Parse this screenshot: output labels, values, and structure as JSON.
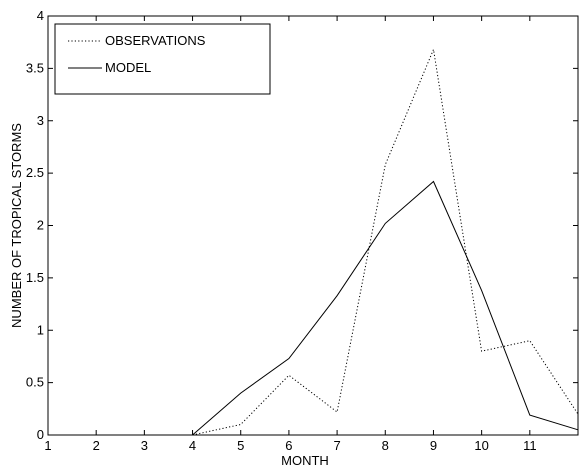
{
  "chart_data": {
    "type": "line",
    "title": "",
    "xlabel": "MONTH",
    "ylabel": "NUMBER OF TROPICAL STORMS",
    "xlim": [
      1,
      12
    ],
    "ylim": [
      0,
      4
    ],
    "xticks": [
      "1",
      "2",
      "3",
      "4",
      "5",
      "6",
      "7",
      "8",
      "9",
      "10",
      "11"
    ],
    "xtick_values": [
      1,
      2,
      3,
      4,
      5,
      6,
      7,
      8,
      9,
      10,
      11
    ],
    "yticks": [
      "0",
      "0.5",
      "1",
      "1.5",
      "2",
      "2.5",
      "3",
      "3.5",
      "4"
    ],
    "ytick_values": [
      0,
      0.5,
      1,
      1.5,
      2,
      2.5,
      3,
      3.5,
      4
    ],
    "grid": false,
    "legend_position": "top-left",
    "series": [
      {
        "name": "OBSERVATIONS",
        "style": "dotted",
        "color": "#000000",
        "x": [
          4,
          5,
          6,
          7,
          8,
          9,
          10,
          11,
          12
        ],
        "y": [
          0,
          0.1,
          0.57,
          0.22,
          2.58,
          3.68,
          0.8,
          0.9,
          0.2
        ]
      },
      {
        "name": "MODEL",
        "style": "solid",
        "color": "#000000",
        "x": [
          4,
          5,
          6,
          7,
          8,
          9,
          10,
          11,
          12
        ],
        "y": [
          0,
          0.4,
          0.73,
          1.33,
          2.02,
          2.42,
          1.38,
          0.19,
          0.05
        ]
      }
    ]
  }
}
